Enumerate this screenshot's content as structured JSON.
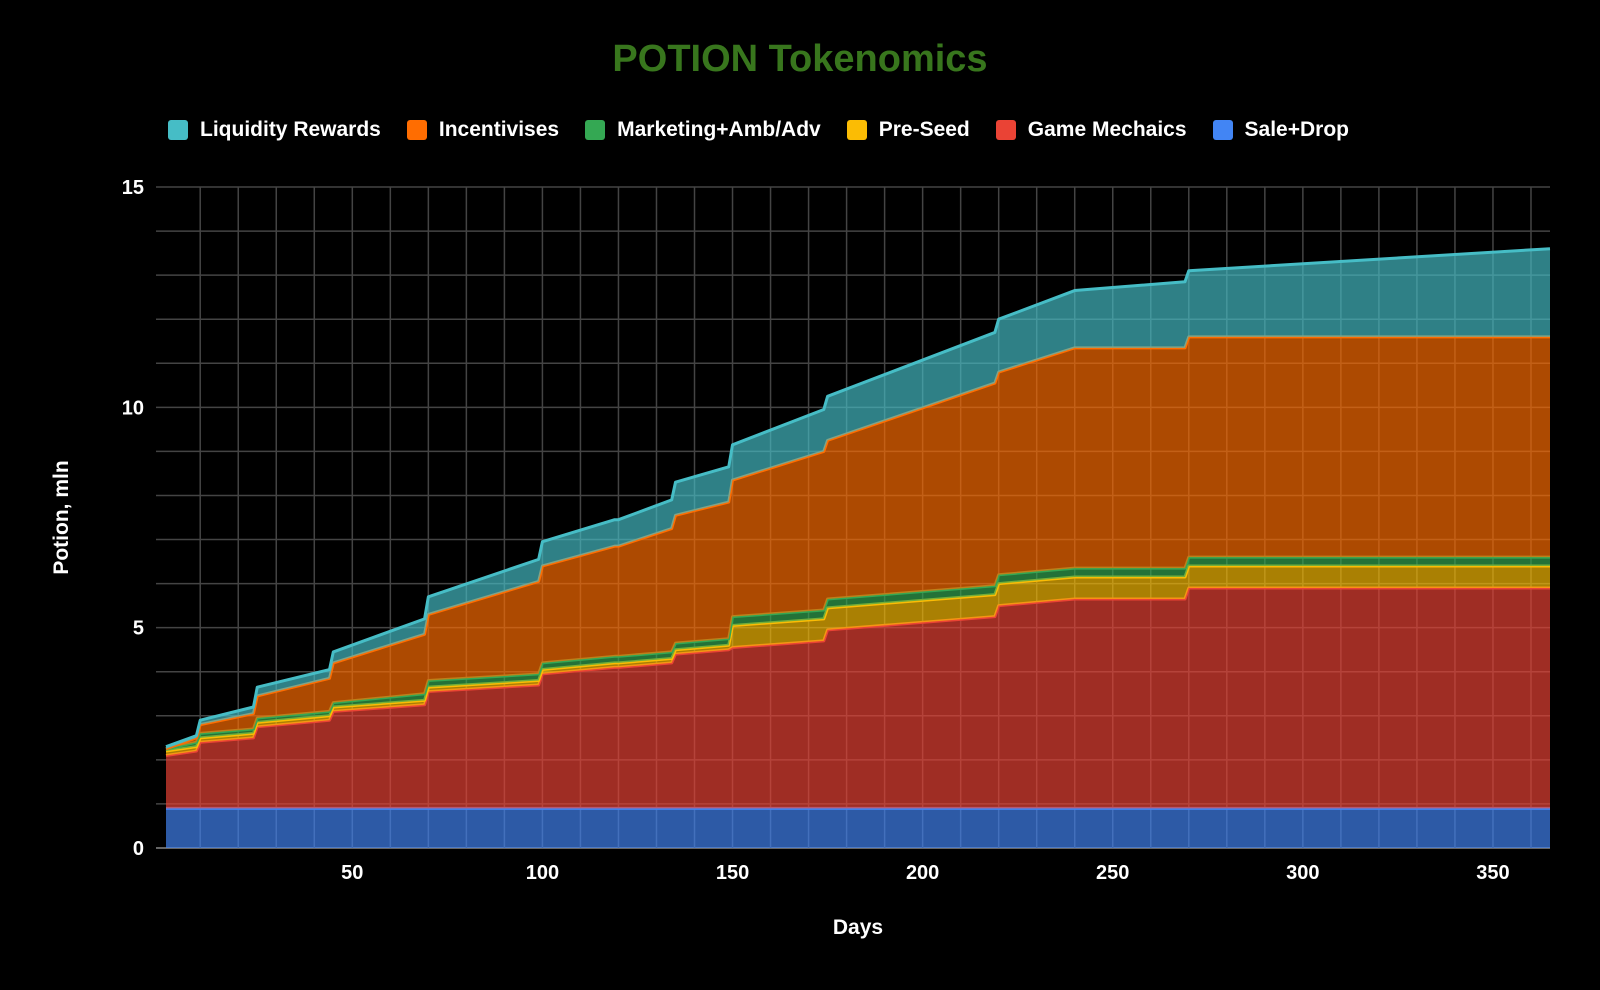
{
  "chart_data": {
    "type": "area",
    "stacked": true,
    "title": "POTION Tokenomics",
    "xlabel": "Days",
    "ylabel": "Potion, mln",
    "xlim": [
      1,
      365
    ],
    "ylim": [
      0,
      15
    ],
    "x_ticks": [
      50,
      100,
      150,
      200,
      250,
      300,
      350
    ],
    "y_ticks": [
      0,
      5,
      10,
      15
    ],
    "grid": true,
    "legend_position": "top",
    "x": [
      1,
      9,
      10,
      24,
      25,
      44,
      45,
      69,
      70,
      99,
      100,
      119,
      120,
      134,
      135,
      149,
      150,
      174,
      175,
      219,
      220,
      240,
      269,
      270,
      365
    ],
    "series": [
      {
        "name": "Sale+Drop",
        "color": "#4285f4",
        "values": [
          0.9,
          0.9,
          0.9,
          0.9,
          0.9,
          0.9,
          0.9,
          0.9,
          0.9,
          0.9,
          0.9,
          0.9,
          0.9,
          0.9,
          0.9,
          0.9,
          0.9,
          0.9,
          0.9,
          0.9,
          0.9,
          0.9,
          0.9,
          0.9,
          0.9
        ]
      },
      {
        "name": "Game Mechaics",
        "color": "#ea4335",
        "values": [
          1.2,
          1.3,
          1.5,
          1.6,
          1.85,
          2.0,
          2.2,
          2.35,
          2.65,
          2.8,
          3.05,
          3.2,
          3.2,
          3.3,
          3.5,
          3.6,
          3.65,
          3.8,
          4.05,
          4.35,
          4.6,
          4.75,
          4.75,
          5.0,
          5.0
        ]
      },
      {
        "name": "Pre-Seed",
        "color": "#fbbc04",
        "values": [
          0.1,
          0.1,
          0.1,
          0.1,
          0.1,
          0.1,
          0.1,
          0.1,
          0.1,
          0.1,
          0.1,
          0.1,
          0.1,
          0.1,
          0.1,
          0.1,
          0.5,
          0.5,
          0.5,
          0.5,
          0.5,
          0.5,
          0.5,
          0.5,
          0.5
        ]
      },
      {
        "name": "Marketing+Amb/Adv",
        "color": "#34a853",
        "values": [
          0.05,
          0.1,
          0.1,
          0.1,
          0.1,
          0.1,
          0.1,
          0.15,
          0.15,
          0.15,
          0.15,
          0.15,
          0.15,
          0.15,
          0.15,
          0.15,
          0.2,
          0.2,
          0.2,
          0.2,
          0.2,
          0.2,
          0.2,
          0.2,
          0.2
        ]
      },
      {
        "name": "Incentivises",
        "color": "#ff6d01",
        "values": [
          0.0,
          0.1,
          0.2,
          0.35,
          0.5,
          0.75,
          0.9,
          1.35,
          1.5,
          2.1,
          2.2,
          2.5,
          2.5,
          2.8,
          2.9,
          3.1,
          3.1,
          3.6,
          3.6,
          4.6,
          4.6,
          5.0,
          5.0,
          5.0,
          5.0
        ]
      },
      {
        "name": "Liquidity Rewards",
        "color": "#46bdc6",
        "values": [
          0.05,
          0.05,
          0.1,
          0.15,
          0.2,
          0.2,
          0.25,
          0.35,
          0.4,
          0.5,
          0.55,
          0.6,
          0.6,
          0.65,
          0.75,
          0.8,
          0.8,
          0.95,
          1.0,
          1.15,
          1.2,
          1.3,
          1.5,
          1.5,
          2.0
        ]
      }
    ]
  }
}
